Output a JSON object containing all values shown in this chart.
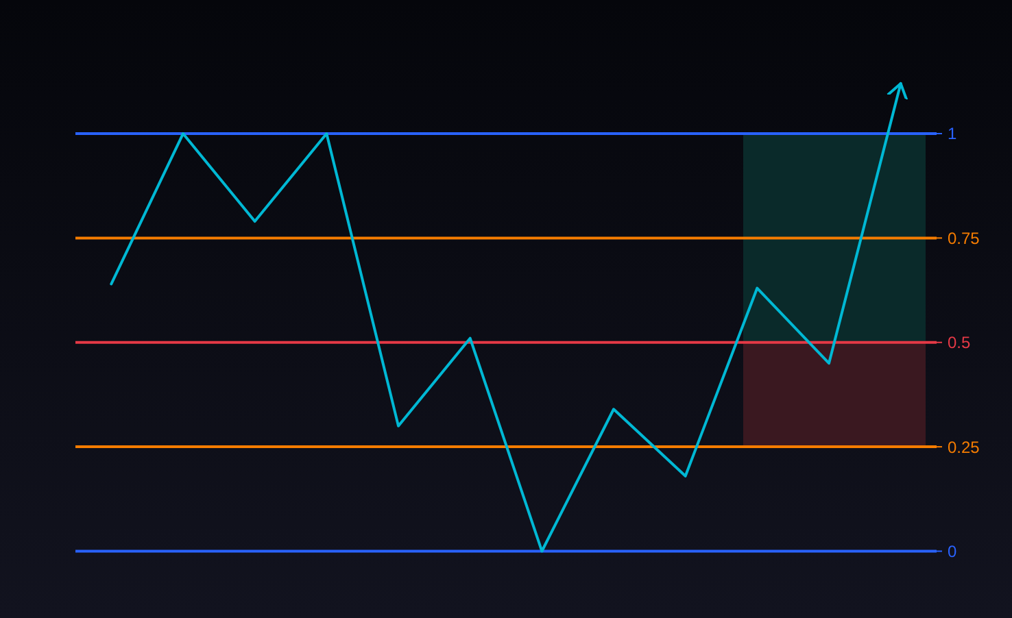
{
  "chart_data": {
    "type": "line",
    "categories": [
      null,
      null,
      null,
      null,
      null,
      null,
      null,
      null,
      null,
      null,
      null,
      null
    ],
    "series": [
      {
        "color": "#00b8d4",
        "values": [
          0.64,
          1,
          0.79,
          1,
          0.3,
          0.51,
          0,
          0.34,
          0.18,
          0.63,
          0.45,
          1.12
        ]
      }
    ],
    "ylim": [
      -0.16,
      1.32
    ],
    "yticks": [
      0,
      0.25,
      0.5,
      0.75,
      1
    ],
    "tick_labels": "y",
    "ref_lines": [
      {
        "axis": "y",
        "value": 1,
        "color": "#2962ff"
      },
      {
        "axis": "y",
        "value": 0.75,
        "color": "#f57c00"
      },
      {
        "axis": "y",
        "value": 0.5,
        "color": "#e53946"
      },
      {
        "axis": "y",
        "value": 0.25,
        "color": "#f57c00"
      },
      {
        "axis": "y",
        "value": 0,
        "color": "#2962ff"
      }
    ],
    "bands": [
      {
        "axis": "y",
        "from": 0.5,
        "to": 1,
        "color": "#0a2a2a"
      },
      {
        "axis": "y",
        "from": 0.25,
        "to": 0.5,
        "color": "#3a1820"
      }
    ]
  }
}
